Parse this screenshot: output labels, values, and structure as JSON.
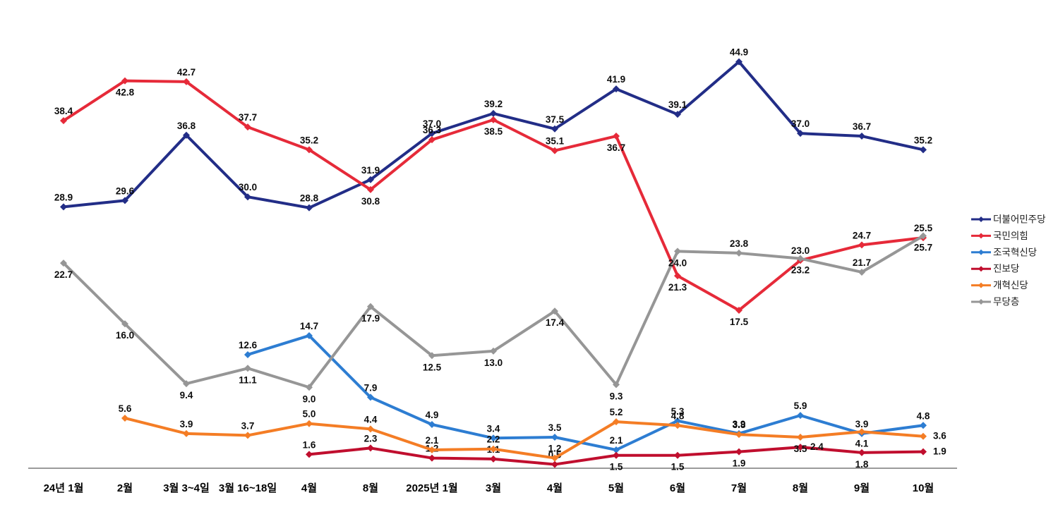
{
  "chart_data": {
    "type": "line",
    "title": "",
    "categories": [
      "24년 1월",
      "2월",
      "3월 3~4일",
      "3월 16~18일",
      "4월",
      "8월",
      "2025년 1월",
      "3월",
      "4월",
      "5월",
      "6월",
      "7월",
      "8월",
      "9월",
      "10월"
    ],
    "series": [
      {
        "key": "minjoo-party",
        "name": "더불어민주당",
        "color": "#222D87",
        "values": [
          28.9,
          29.6,
          36.8,
          30.0,
          28.8,
          31.9,
          37.0,
          39.2,
          37.5,
          41.9,
          39.1,
          44.9,
          37.0,
          36.7,
          35.2
        ],
        "label_side": [
          "a",
          "a",
          "a",
          "a",
          "a",
          "a",
          "a",
          "a",
          "a",
          "a",
          "a",
          "a",
          "a",
          "a",
          "a"
        ]
      },
      {
        "key": "people-power-party",
        "name": "국민의힘",
        "color": "#E62A39",
        "values": [
          38.4,
          42.8,
          42.7,
          37.7,
          35.2,
          30.8,
          36.3,
          38.5,
          35.1,
          36.7,
          21.3,
          17.5,
          23.0,
          24.7,
          25.5
        ],
        "label_side": [
          "a",
          "b",
          "a",
          "a",
          "a",
          "b",
          "a",
          "b",
          "a",
          "b",
          "b",
          "b",
          "a",
          "a",
          "a"
        ]
      },
      {
        "key": "rebuilding-korea-party",
        "name": "조국혁신당",
        "color": "#2D7DD2",
        "values": [
          null,
          null,
          null,
          12.6,
          14.7,
          7.9,
          4.9,
          3.4,
          3.5,
          2.1,
          5.3,
          3.9,
          5.9,
          3.9,
          4.8
        ],
        "label_side": [
          null,
          null,
          null,
          "a",
          "a",
          "a",
          "a",
          "a",
          "a",
          "a",
          "a",
          "a",
          "a",
          "a",
          "a"
        ]
      },
      {
        "key": "jinbo-party",
        "name": "진보당",
        "color": "#C00E2E",
        "values": [
          null,
          null,
          null,
          null,
          1.6,
          2.3,
          1.2,
          1.1,
          0.5,
          1.5,
          1.5,
          1.9,
          2.4,
          1.8,
          1.9
        ],
        "label_side": [
          null,
          null,
          null,
          null,
          "a",
          "a",
          "a",
          "a",
          "a",
          "b",
          "b",
          "b",
          "r",
          "b",
          "r"
        ]
      },
      {
        "key": "reform-party",
        "name": "개혁신당",
        "color": "#F47D25",
        "values": [
          null,
          5.6,
          3.9,
          3.7,
          5.0,
          4.4,
          2.1,
          2.2,
          1.2,
          5.2,
          4.8,
          3.8,
          3.5,
          4.1,
          3.6
        ],
        "label_side": [
          null,
          "a",
          "a",
          "a",
          "a",
          "a",
          "a",
          "a",
          "a",
          "a",
          "a",
          "a",
          "b",
          "b",
          "r"
        ]
      },
      {
        "key": "no-party",
        "name": "무당층",
        "color": "#969696",
        "values": [
          22.7,
          16.0,
          9.4,
          11.1,
          9.0,
          17.9,
          12.5,
          13.0,
          17.4,
          9.3,
          24.0,
          23.8,
          23.2,
          21.7,
          25.7
        ],
        "label_side": [
          "b",
          "b",
          "b",
          "b",
          "b",
          "b",
          "b",
          "b",
          "b",
          "b",
          "b",
          "a",
          "b",
          "a",
          "b"
        ]
      }
    ],
    "ylim": [
      0,
      47
    ],
    "grid": false,
    "y_axis_visible": false,
    "legend_position": "right",
    "axis_line_color": "#9B9B9B",
    "label_color": "#0D0D0D",
    "background": "#FFFFFF"
  }
}
